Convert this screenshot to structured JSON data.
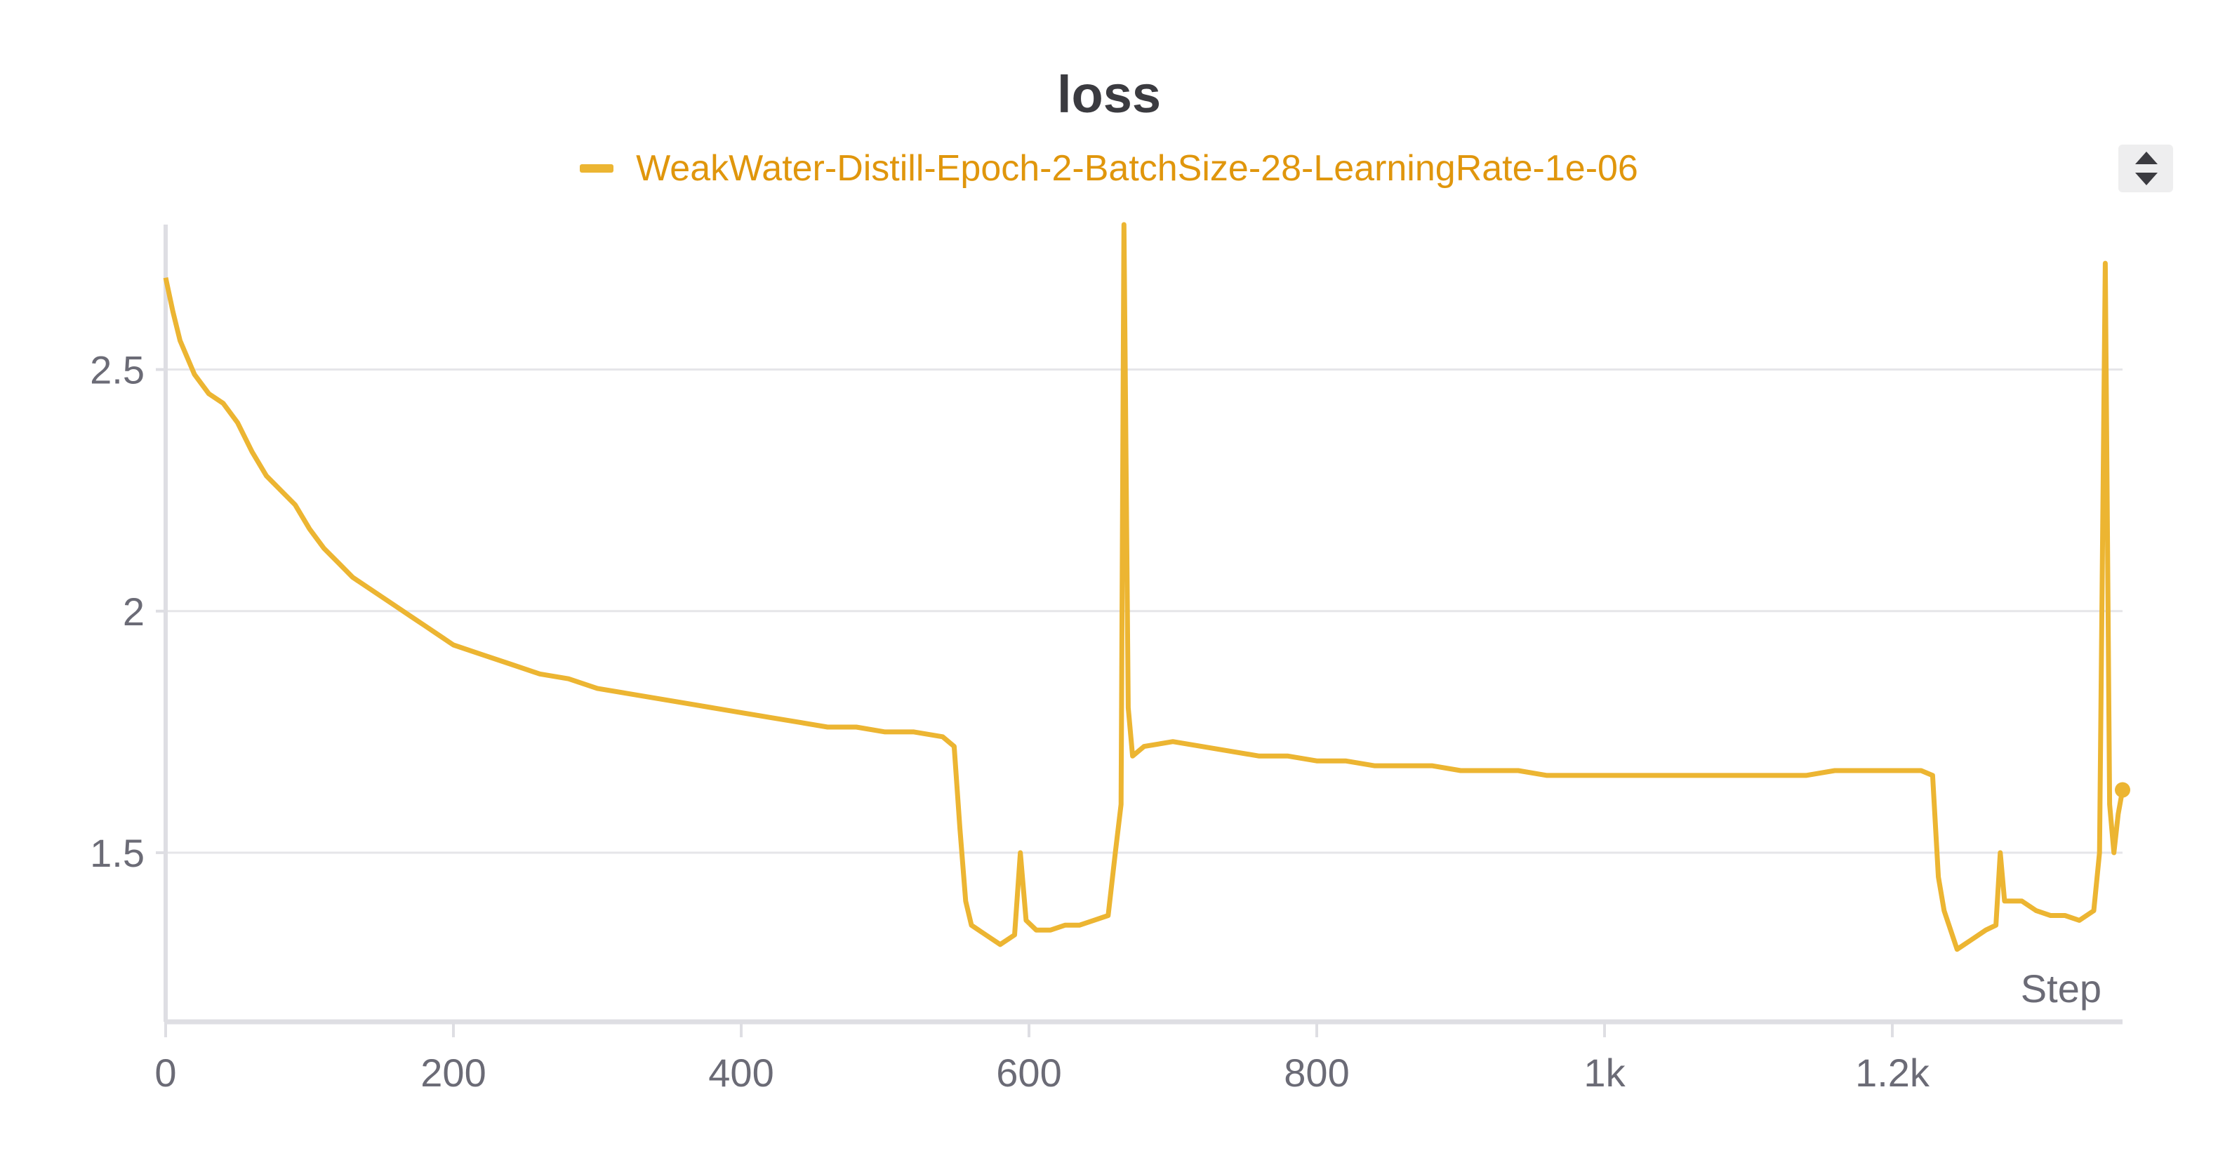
{
  "colors": {
    "series": "#ecb532",
    "legend_text": "#e0960c",
    "title": "#3b3b40",
    "axis_text": "#6b6b76",
    "grid": "#e6e6e9",
    "axis": "#dedee3"
  },
  "chart_data": {
    "type": "line",
    "title": "loss",
    "xlabel": "Step",
    "ylabel": "",
    "xlim": [
      0,
      1360
    ],
    "ylim": [
      1.15,
      2.8
    ],
    "x_ticks": [
      0,
      200,
      400,
      600,
      800,
      1000,
      1200
    ],
    "x_tick_labels": [
      "0",
      "200",
      "400",
      "600",
      "800",
      "1k",
      "1.2k"
    ],
    "y_ticks": [
      1.5,
      2,
      2.5
    ],
    "y_tick_labels": [
      "1.5",
      "2",
      "2.5"
    ],
    "grid": true,
    "legend_position": "top-center",
    "series": [
      {
        "name": "WeakWater-Distill-Epoch-2-BatchSize-28-LearningRate-1e-06",
        "points": [
          [
            0,
            2.69
          ],
          [
            5,
            2.62
          ],
          [
            10,
            2.56
          ],
          [
            20,
            2.49
          ],
          [
            30,
            2.45
          ],
          [
            40,
            2.43
          ],
          [
            50,
            2.39
          ],
          [
            60,
            2.33
          ],
          [
            70,
            2.28
          ],
          [
            80,
            2.25
          ],
          [
            90,
            2.22
          ],
          [
            100,
            2.17
          ],
          [
            110,
            2.13
          ],
          [
            120,
            2.1
          ],
          [
            130,
            2.07
          ],
          [
            140,
            2.05
          ],
          [
            150,
            2.03
          ],
          [
            160,
            2.01
          ],
          [
            170,
            1.99
          ],
          [
            180,
            1.97
          ],
          [
            190,
            1.95
          ],
          [
            200,
            1.93
          ],
          [
            220,
            1.91
          ],
          [
            240,
            1.89
          ],
          [
            260,
            1.87
          ],
          [
            280,
            1.86
          ],
          [
            300,
            1.84
          ],
          [
            320,
            1.83
          ],
          [
            340,
            1.82
          ],
          [
            360,
            1.81
          ],
          [
            380,
            1.8
          ],
          [
            400,
            1.79
          ],
          [
            420,
            1.78
          ],
          [
            440,
            1.77
          ],
          [
            460,
            1.76
          ],
          [
            480,
            1.76
          ],
          [
            500,
            1.75
          ],
          [
            520,
            1.75
          ],
          [
            540,
            1.74
          ],
          [
            548,
            1.72
          ],
          [
            552,
            1.55
          ],
          [
            556,
            1.4
          ],
          [
            560,
            1.35
          ],
          [
            570,
            1.33
          ],
          [
            580,
            1.31
          ],
          [
            590,
            1.33
          ],
          [
            594,
            1.5
          ],
          [
            598,
            1.36
          ],
          [
            605,
            1.34
          ],
          [
            615,
            1.34
          ],
          [
            625,
            1.35
          ],
          [
            635,
            1.35
          ],
          [
            645,
            1.36
          ],
          [
            655,
            1.37
          ],
          [
            660,
            1.5
          ],
          [
            664,
            1.6
          ],
          [
            666,
            2.8
          ],
          [
            669,
            1.8
          ],
          [
            672,
            1.7
          ],
          [
            680,
            1.72
          ],
          [
            700,
            1.73
          ],
          [
            720,
            1.72
          ],
          [
            740,
            1.71
          ],
          [
            760,
            1.7
          ],
          [
            780,
            1.7
          ],
          [
            800,
            1.69
          ],
          [
            820,
            1.69
          ],
          [
            840,
            1.68
          ],
          [
            860,
            1.68
          ],
          [
            880,
            1.68
          ],
          [
            900,
            1.67
          ],
          [
            920,
            1.67
          ],
          [
            940,
            1.67
          ],
          [
            960,
            1.66
          ],
          [
            980,
            1.66
          ],
          [
            1000,
            1.66
          ],
          [
            1020,
            1.66
          ],
          [
            1040,
            1.66
          ],
          [
            1060,
            1.66
          ],
          [
            1080,
            1.66
          ],
          [
            1100,
            1.66
          ],
          [
            1120,
            1.66
          ],
          [
            1140,
            1.66
          ],
          [
            1160,
            1.67
          ],
          [
            1180,
            1.67
          ],
          [
            1200,
            1.67
          ],
          [
            1220,
            1.67
          ],
          [
            1228,
            1.66
          ],
          [
            1232,
            1.45
          ],
          [
            1236,
            1.38
          ],
          [
            1245,
            1.3
          ],
          [
            1255,
            1.32
          ],
          [
            1265,
            1.34
          ],
          [
            1272,
            1.35
          ],
          [
            1275,
            1.5
          ],
          [
            1278,
            1.4
          ],
          [
            1290,
            1.4
          ],
          [
            1300,
            1.38
          ],
          [
            1310,
            1.37
          ],
          [
            1320,
            1.37
          ],
          [
            1330,
            1.36
          ],
          [
            1340,
            1.38
          ],
          [
            1344,
            1.5
          ],
          [
            1348,
            2.72
          ],
          [
            1351,
            1.6
          ],
          [
            1354,
            1.5
          ],
          [
            1357,
            1.58
          ],
          [
            1360,
            1.63
          ]
        ]
      }
    ]
  }
}
